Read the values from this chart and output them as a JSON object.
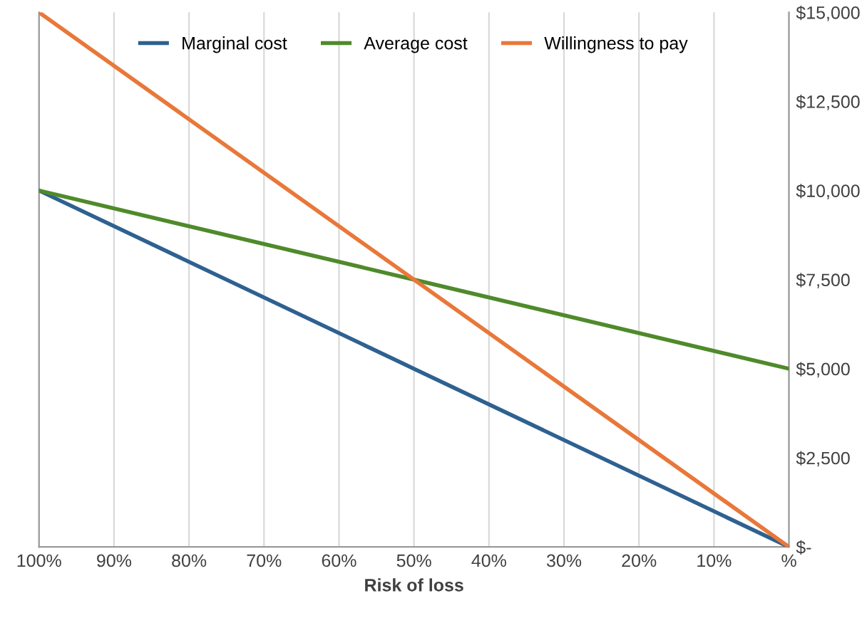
{
  "chart_data": {
    "type": "line",
    "xlabel": "Risk of loss",
    "x": [
      100,
      50,
      0
    ],
    "series": [
      {
        "name": "Marginal cost",
        "color": "#2e6190",
        "values": [
          10000,
          5000,
          0
        ]
      },
      {
        "name": "Average cost",
        "color": "#4f8a2b",
        "values": [
          10000,
          7500,
          5000
        ]
      },
      {
        "name": "Willingness to pay",
        "color": "#e8783a",
        "values": [
          15000,
          7500,
          0
        ]
      }
    ],
    "xlim": [
      100,
      0
    ],
    "xticks": [
      {
        "value": 100,
        "label": "100%"
      },
      {
        "value": 90,
        "label": "90%"
      },
      {
        "value": 80,
        "label": "80%"
      },
      {
        "value": 70,
        "label": "70%"
      },
      {
        "value": 60,
        "label": "60%"
      },
      {
        "value": 50,
        "label": "50%"
      },
      {
        "value": 40,
        "label": "40%"
      },
      {
        "value": 30,
        "label": "30%"
      },
      {
        "value": 20,
        "label": "20%"
      },
      {
        "value": 10,
        "label": "10%"
      },
      {
        "value": 0,
        "label": "%"
      }
    ],
    "ylim": [
      0,
      15000
    ],
    "yticks": [
      {
        "value": 0,
        "label": "$-"
      },
      {
        "value": 2500,
        "label": "$2,500"
      },
      {
        "value": 5000,
        "label": "$5,000"
      },
      {
        "value": 7500,
        "label": "$7,500"
      },
      {
        "value": 10000,
        "label": "$10,000"
      },
      {
        "value": 12500,
        "label": "$12,500"
      },
      {
        "value": 15000,
        "label": "$15,000"
      }
    ],
    "grid": "x",
    "legend": "top",
    "marker": "none",
    "line_style": "solid"
  }
}
